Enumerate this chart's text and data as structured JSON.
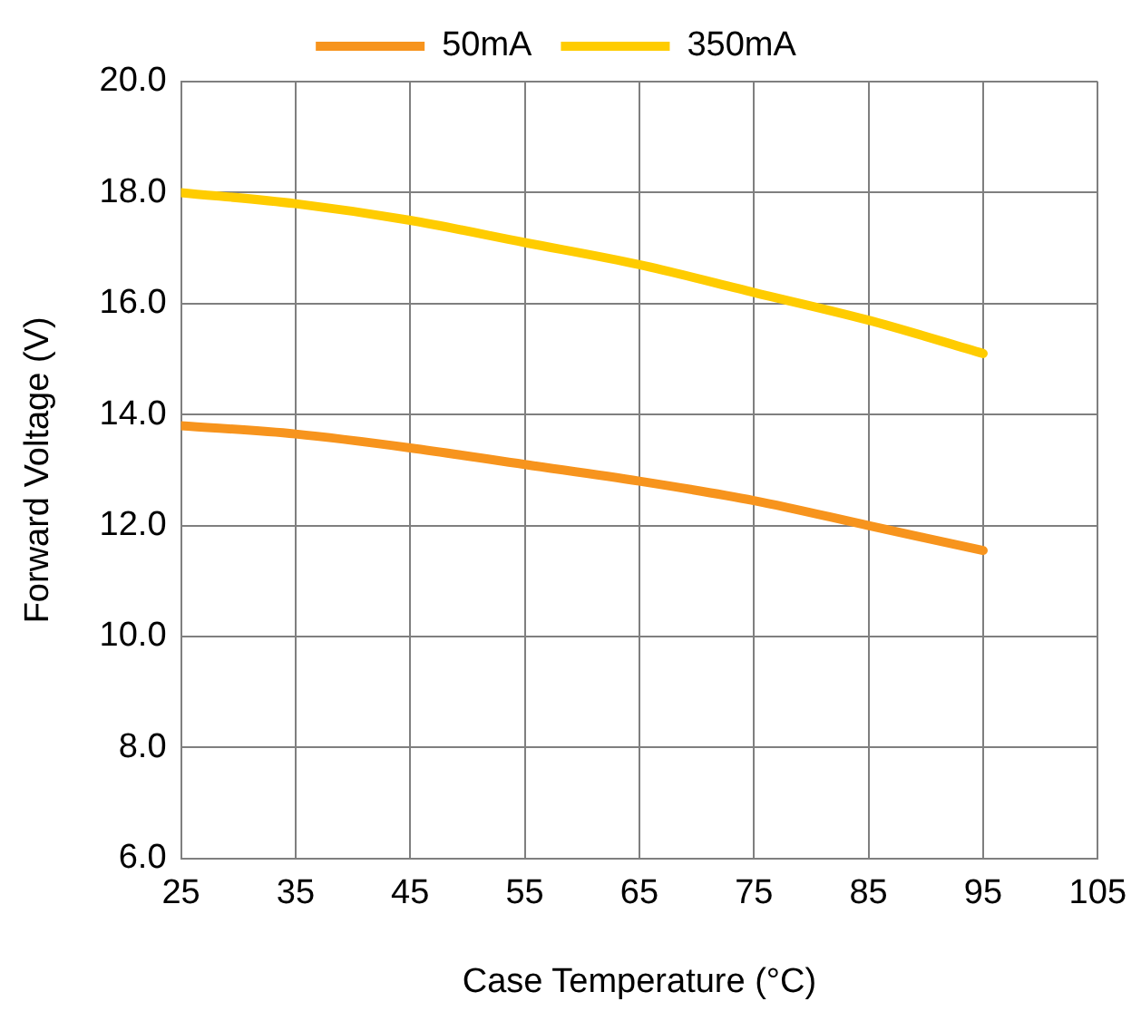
{
  "chart_data": {
    "type": "line",
    "xlabel": "Case Temperature (°C)",
    "ylabel": "Forward Voltage (V)",
    "x": [
      25,
      35,
      45,
      55,
      65,
      75,
      85,
      95
    ],
    "series": [
      {
        "name": "50mA",
        "color": "#f7941d",
        "values": [
          13.8,
          13.65,
          13.4,
          13.1,
          12.8,
          12.45,
          12.0,
          11.55
        ]
      },
      {
        "name": "350mA",
        "color": "#ffcc00",
        "values": [
          18.0,
          17.8,
          17.5,
          17.1,
          16.7,
          16.2,
          15.7,
          15.1
        ]
      }
    ],
    "xlim": [
      25,
      105
    ],
    "xticks": [
      25,
      35,
      45,
      55,
      65,
      75,
      85,
      95,
      105
    ],
    "ylim": [
      6,
      20
    ],
    "yticks": [
      {
        "value": 6,
        "label": "6.0"
      },
      {
        "value": 8,
        "label": "8.0"
      },
      {
        "value": 10,
        "label": "10.0"
      },
      {
        "value": 12,
        "label": "12.0"
      },
      {
        "value": 14,
        "label": "14.0"
      },
      {
        "value": 16,
        "label": "16.0"
      },
      {
        "value": 18,
        "label": "18.0"
      },
      {
        "value": 20,
        "label": "20.0"
      }
    ],
    "grid": true,
    "legend": "top",
    "marker": "none",
    "line_style": "solid"
  }
}
